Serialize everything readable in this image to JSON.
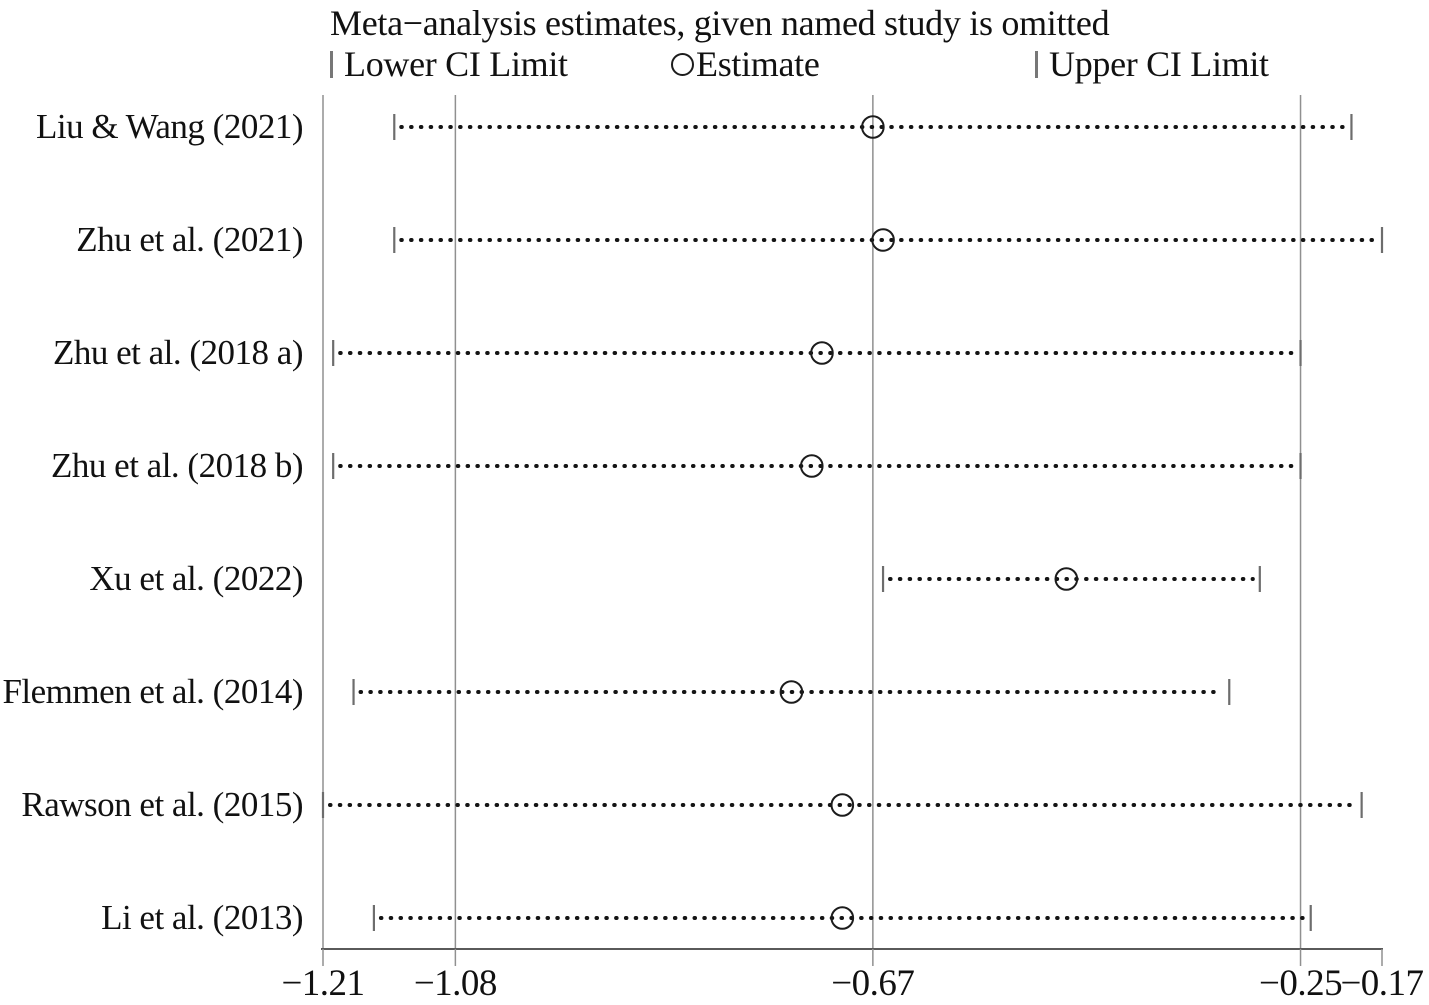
{
  "chart_data": {
    "type": "scatter",
    "subtype": "leave-one-out-meta-analysis-forest",
    "title": "Meta−analysis estimates, given named study is omitted",
    "xlabel": "",
    "ylabel": "",
    "xlim": [
      -1.21,
      -0.17
    ],
    "grid": "vertical-gridlines-on",
    "legend_position": "top",
    "legend": {
      "lower_label": "Lower CI Limit",
      "estimate_label": "Estimate",
      "upper_label": "Upper CI Limit"
    },
    "xticks": [
      {
        "value": -1.21,
        "label": "−1.21"
      },
      {
        "value": -1.08,
        "label": "−1.08"
      },
      {
        "value": -0.67,
        "label": "−0.67"
      },
      {
        "value": -0.25,
        "label": "−0.25"
      },
      {
        "value": -0.17,
        "label": "−0.17"
      }
    ],
    "gridline_values": [
      -1.21,
      -1.08,
      -0.67,
      -0.25
    ],
    "studies": [
      {
        "name": "Liu & Wang (2021)",
        "lower": -1.14,
        "estimate": -0.67,
        "upper": -0.2
      },
      {
        "name": "Zhu et al. (2021)",
        "lower": -1.14,
        "estimate": -0.66,
        "upper": -0.17
      },
      {
        "name": "Zhu et al. (2018 a)",
        "lower": -1.2,
        "estimate": -0.72,
        "upper": -0.25
      },
      {
        "name": "Zhu et al. (2018 b)",
        "lower": -1.2,
        "estimate": -0.73,
        "upper": -0.25
      },
      {
        "name": "Xu et al. (2022)",
        "lower": -0.66,
        "estimate": -0.48,
        "upper": -0.29
      },
      {
        "name": "Flemmen et al. (2014)",
        "lower": -1.18,
        "estimate": -0.75,
        "upper": -0.32
      },
      {
        "name": "Rawson et al. (2015)",
        "lower": -1.21,
        "estimate": -0.7,
        "upper": -0.19
      },
      {
        "name": "Li et al. (2013)",
        "lower": -1.16,
        "estimate": -0.7,
        "upper": -0.24
      }
    ],
    "colors": {
      "dots": "#141414",
      "ci_end_tick": "#6d6d6d",
      "gridline": "#909090",
      "axis": "#5a5a5a",
      "marker_outline": "#1c1c1c",
      "text": "#111111"
    }
  }
}
